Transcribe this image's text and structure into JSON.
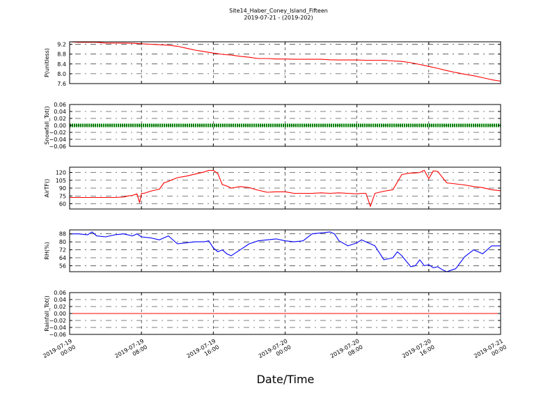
{
  "figure": {
    "title": "Site14_Haber_Coney_Island_Fifteen",
    "subtitle": "2019-07-21 - (2019-202)",
    "xlabel": "Date/Time"
  },
  "chart_data": [
    {
      "type": "line",
      "ylabel": "P(unitless)",
      "ylim": [
        7.6,
        9.3
      ],
      "yticks": [
        "9.2",
        "8.8",
        "8.4",
        "8.0",
        "7.6"
      ],
      "ytick_values": [
        9.2,
        8.8,
        8.4,
        8.0,
        7.6
      ],
      "x_range_hours": [
        0,
        48
      ],
      "xtick_labels": [
        [
          "2019-07-19",
          "00:00"
        ],
        [
          "2019-07-19",
          "08:00"
        ],
        [
          "2019-07-19",
          "16:00"
        ],
        [
          "2019-07-20",
          "00:00"
        ],
        [
          "2019-07-20",
          "08:00"
        ],
        [
          "2019-07-20",
          "16:00"
        ],
        [
          "2019-07-21",
          "00:00"
        ]
      ],
      "grid": true,
      "series": [
        {
          "color": "#ff0000",
          "x": [
            0,
            1,
            2,
            3,
            4,
            5,
            6,
            7,
            8,
            9,
            10,
            11,
            12,
            13,
            14,
            15,
            16,
            17,
            18,
            19,
            20,
            21,
            22,
            23,
            24,
            25,
            26,
            27,
            28,
            29,
            30,
            31,
            32,
            33,
            34,
            35,
            36,
            37,
            38,
            39,
            40,
            41,
            42,
            43,
            44,
            45,
            46,
            47,
            48
          ],
          "values": [
            9.3,
            9.28,
            9.28,
            9.28,
            9.25,
            9.25,
            9.25,
            9.24,
            9.22,
            9.2,
            9.18,
            9.16,
            9.12,
            9.04,
            8.96,
            8.9,
            8.84,
            8.79,
            8.76,
            8.71,
            8.67,
            8.62,
            8.62,
            8.6,
            8.6,
            8.59,
            8.59,
            8.59,
            8.59,
            8.57,
            8.56,
            8.56,
            8.56,
            8.55,
            8.55,
            8.55,
            8.52,
            8.5,
            8.45,
            8.38,
            8.3,
            8.22,
            8.13,
            8.05,
            7.98,
            7.92,
            7.84,
            7.76,
            7.7
          ]
        }
      ]
    },
    {
      "type": "line",
      "ylabel": "Snowfall_Tot()",
      "ylim": [
        -0.06,
        0.06
      ],
      "yticks": [
        "0.06",
        "0.04",
        "0.02",
        "0.00",
        "−0.02",
        "−0.04",
        "−0.06"
      ],
      "ytick_values": [
        0.06,
        0.04,
        0.02,
        0,
        -0.02,
        -0.04,
        -0.06
      ],
      "x_range_hours": [
        0,
        48
      ],
      "grid": true,
      "series": [
        {
          "color": "#008000",
          "style": "thick-dotted",
          "x": [
            0,
            48
          ],
          "values": [
            0,
            0
          ]
        }
      ]
    },
    {
      "type": "line",
      "ylabel": "AirTF()",
      "ylim": [
        50,
        130
      ],
      "yticks": [
        "120",
        "105",
        "90",
        "75",
        "60"
      ],
      "ytick_values": [
        120,
        105,
        90,
        75,
        60
      ],
      "x_range_hours": [
        0,
        48
      ],
      "grid": true,
      "series": [
        {
          "color": "#ff0000",
          "x": [
            0,
            1,
            2,
            3,
            4,
            5,
            6,
            6.5,
            7,
            7.5,
            7.8,
            8,
            8.3,
            9,
            10,
            10.5,
            11,
            12,
            13,
            14,
            15,
            15.5,
            16,
            16.5,
            17,
            17.5,
            18,
            19,
            20,
            21,
            22,
            23,
            24,
            25,
            26,
            27,
            28,
            29,
            30,
            31,
            32,
            32.5,
            33,
            33.5,
            34,
            35,
            36,
            37,
            38,
            38.5,
            39,
            39.5,
            40,
            40.5,
            41,
            42,
            43,
            44,
            45,
            46,
            47,
            48
          ],
          "values": [
            72,
            72,
            72,
            72,
            72,
            72,
            73,
            75,
            76,
            79,
            62,
            80,
            80,
            84,
            88,
            100,
            103,
            110,
            113,
            117,
            121,
            124,
            124,
            118,
            97,
            94,
            90,
            93,
            91,
            86,
            82,
            83,
            83,
            80,
            80,
            80,
            81,
            80,
            81,
            80,
            79,
            80,
            80,
            55,
            80,
            84,
            87,
            116,
            119,
            119,
            120,
            124,
            108,
            123,
            122,
            100,
            98,
            96,
            93,
            91,
            87,
            85
          ]
        }
      ]
    },
    {
      "type": "line",
      "ylabel": "RH(%)",
      "ylim": [
        50,
        92
      ],
      "yticks": [
        "88",
        "80",
        "72",
        "64",
        "56"
      ],
      "ytick_values": [
        88,
        80,
        72,
        64,
        56
      ],
      "x_range_hours": [
        0,
        48
      ],
      "grid": true,
      "series": [
        {
          "color": "#0000ff",
          "x": [
            0,
            1,
            2,
            2.5,
            3,
            4,
            5,
            6,
            7,
            7.5,
            8,
            9,
            10,
            11,
            12,
            13,
            14,
            15,
            15.5,
            16,
            16.5,
            17,
            17.5,
            18,
            19,
            20,
            21,
            22,
            23,
            24,
            25,
            26,
            27,
            28,
            29,
            29.5,
            30,
            31,
            32,
            32.5,
            33,
            34,
            35,
            36,
            36.5,
            37,
            38,
            38.5,
            39,
            39.5,
            40,
            40.5,
            41,
            41.5,
            42,
            43,
            44,
            45,
            46,
            47,
            48
          ],
          "values": [
            88,
            88,
            87,
            90,
            86,
            85,
            87,
            88,
            86,
            88,
            85,
            84,
            82,
            86,
            78,
            79,
            80,
            80,
            81,
            74,
            70,
            72,
            68,
            66,
            72,
            78,
            81,
            82,
            83,
            81,
            80,
            81,
            88,
            89,
            90,
            88,
            81,
            76,
            79,
            82,
            80,
            76,
            62,
            64,
            70,
            66,
            55,
            56,
            62,
            56,
            57,
            54,
            55,
            52,
            50,
            53,
            65,
            72,
            68,
            76,
            76
          ]
        }
      ]
    },
    {
      "type": "line",
      "ylabel": "Rainfall_Tot()",
      "ylim": [
        -0.06,
        0.06
      ],
      "yticks": [
        "0.06",
        "0.04",
        "0.02",
        "0.00",
        "−0.02",
        "−0.04",
        "−0.06"
      ],
      "ytick_values": [
        0.06,
        0.04,
        0.02,
        0,
        -0.02,
        -0.04,
        -0.06
      ],
      "x_range_hours": [
        0,
        48
      ],
      "grid": true,
      "series": [
        {
          "color": "#ff0000",
          "x": [
            0,
            48
          ],
          "values": [
            0,
            0
          ]
        }
      ]
    }
  ]
}
